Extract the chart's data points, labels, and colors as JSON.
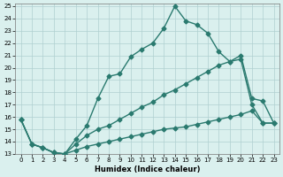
{
  "xlabel": "Humidex (Indice chaleur)",
  "bg_color": "#daf0ee",
  "grid_color": "#b0d0d0",
  "line_color": "#2a7a6f",
  "xlim": [
    -0.5,
    23.5
  ],
  "ylim": [
    13,
    25.2
  ],
  "xticks": [
    0,
    1,
    2,
    3,
    4,
    5,
    6,
    7,
    8,
    9,
    10,
    11,
    12,
    13,
    14,
    15,
    16,
    17,
    18,
    19,
    20,
    21,
    22,
    23
  ],
  "yticks": [
    13,
    14,
    15,
    16,
    17,
    18,
    19,
    20,
    21,
    22,
    23,
    24,
    25
  ],
  "line1_x": [
    0,
    1,
    2,
    3,
    4,
    5,
    6,
    7,
    8,
    9,
    10,
    11,
    12,
    13,
    14,
    15,
    16,
    17,
    18,
    19,
    20,
    21,
    22,
    23
  ],
  "line1_y": [
    15.8,
    13.8,
    13.5,
    13.1,
    13.0,
    14.2,
    15.3,
    17.5,
    19.3,
    19.5,
    20.9,
    21.5,
    22.0,
    23.2,
    25.0,
    23.8,
    23.5,
    22.8,
    21.3,
    20.5,
    20.7,
    17.0,
    15.5,
    15.5
  ],
  "line2_x": [
    0,
    1,
    2,
    3,
    4,
    5,
    6,
    7,
    8,
    9,
    10,
    11,
    12,
    13,
    14,
    15,
    16,
    17,
    18,
    19,
    20,
    21,
    22,
    23
  ],
  "line2_y": [
    15.8,
    13.8,
    13.5,
    13.1,
    13.0,
    13.8,
    14.5,
    15.0,
    15.3,
    15.8,
    16.3,
    16.8,
    17.2,
    17.8,
    18.2,
    18.7,
    19.2,
    19.7,
    20.2,
    20.5,
    21.0,
    17.5,
    17.3,
    15.5
  ],
  "line3_x": [
    0,
    1,
    2,
    3,
    4,
    5,
    6,
    7,
    8,
    9,
    10,
    11,
    12,
    13,
    14,
    15,
    16,
    17,
    18,
    19,
    20,
    21,
    22,
    23
  ],
  "line3_y": [
    15.8,
    13.8,
    13.5,
    13.1,
    13.0,
    13.3,
    13.6,
    13.8,
    14.0,
    14.2,
    14.4,
    14.6,
    14.8,
    15.0,
    15.1,
    15.2,
    15.4,
    15.6,
    15.8,
    16.0,
    16.2,
    16.5,
    15.5,
    15.5
  ],
  "marker": "D",
  "markersize": 2.5,
  "linewidth": 1.0
}
